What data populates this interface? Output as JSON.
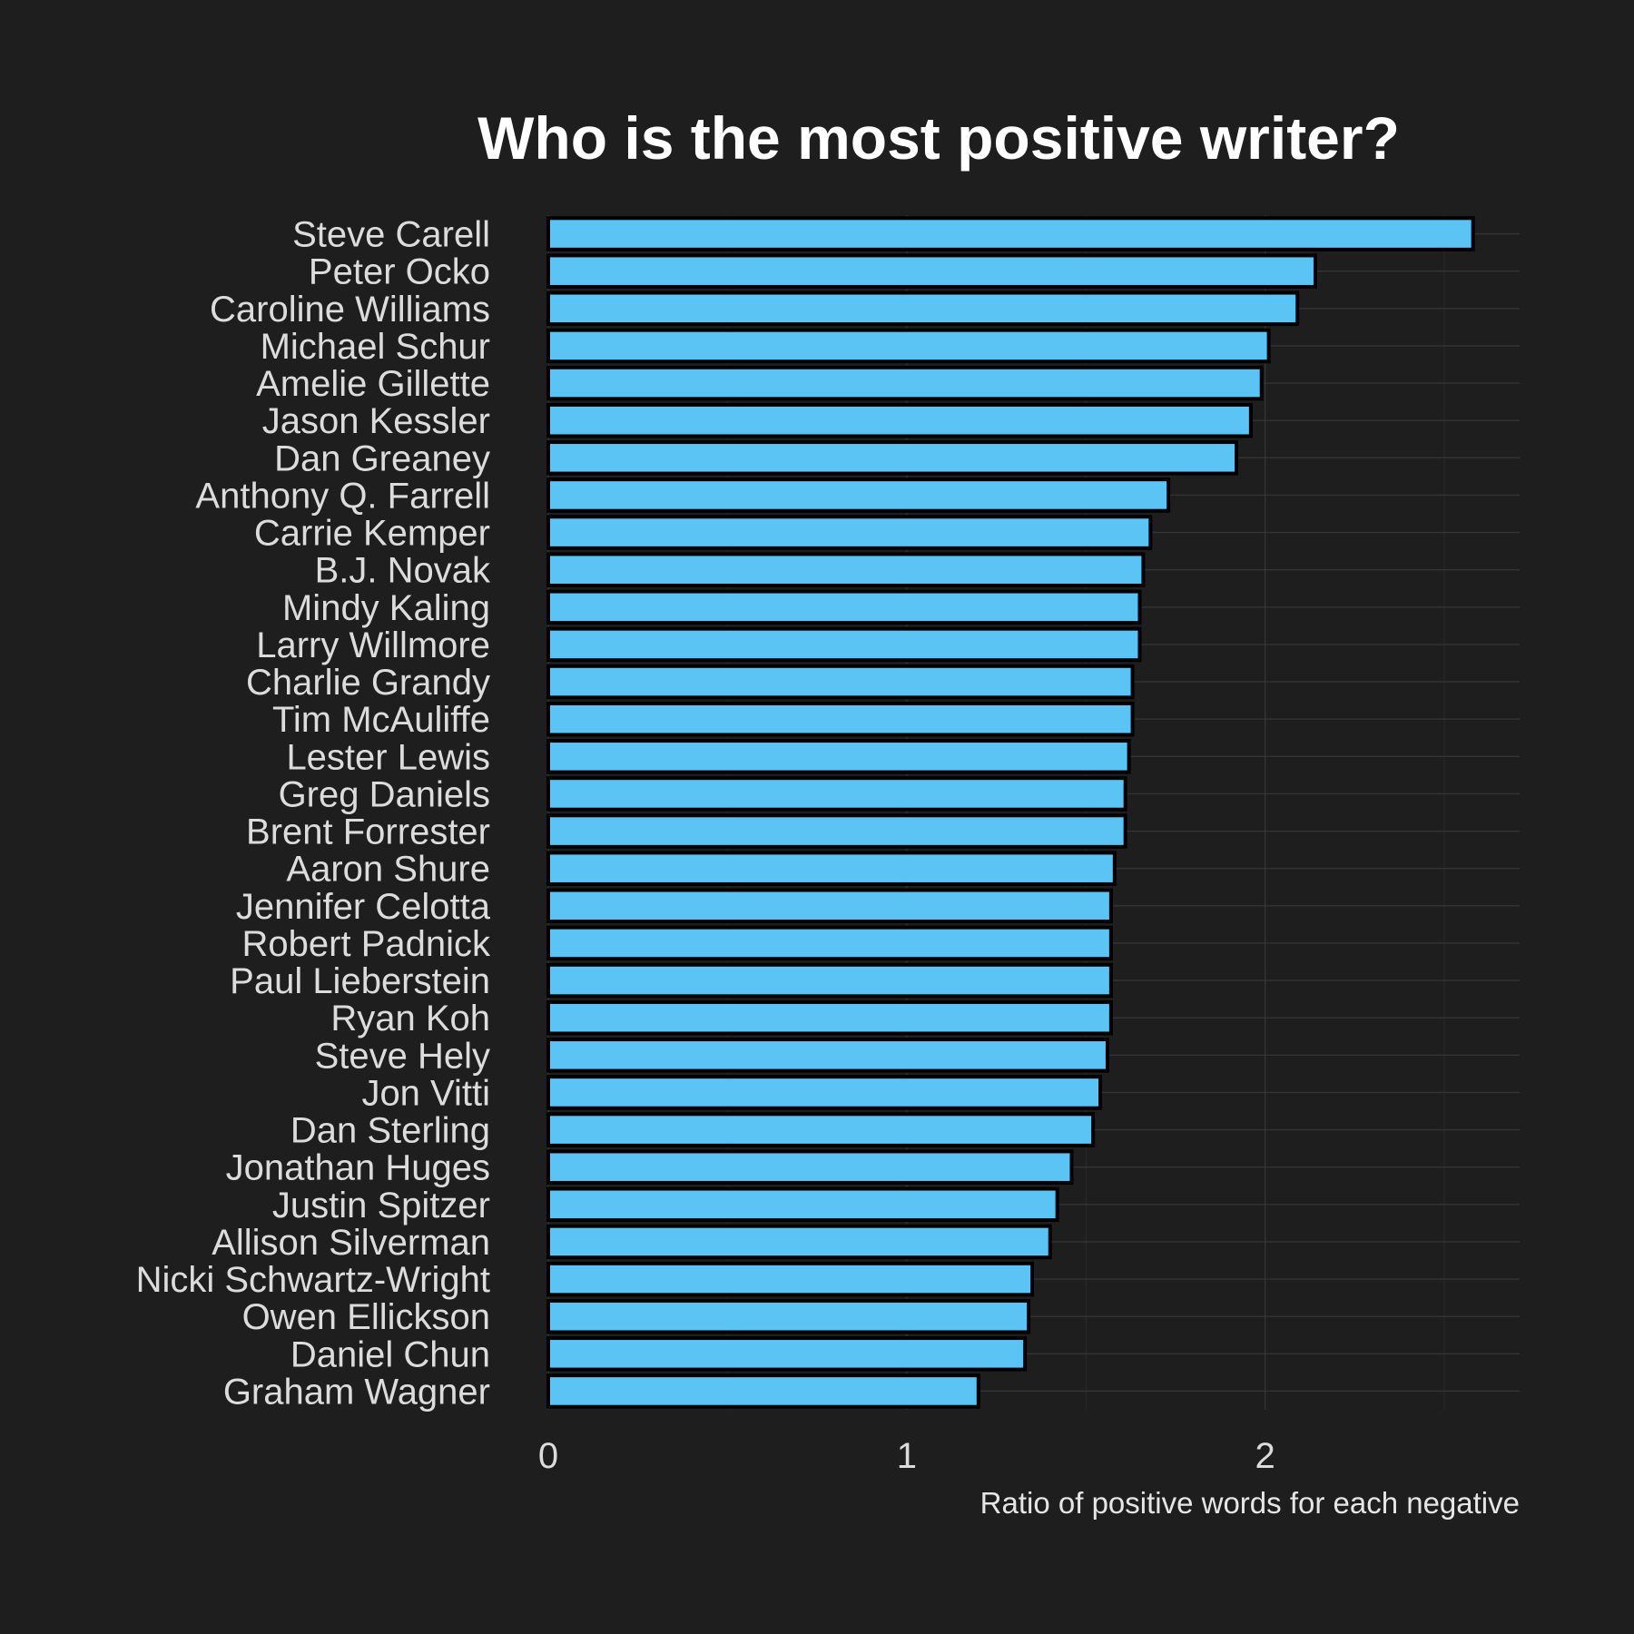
{
  "chart_data": {
    "type": "bar",
    "orientation": "horizontal",
    "title": "Who is the most positive writer?",
    "xlabel": "Ratio of positive words for each negative",
    "ylabel": "",
    "xlim": [
      0,
      2.71
    ],
    "xticks": [
      0,
      1,
      2
    ],
    "grid": true,
    "bar_color": "#5bc4f5",
    "categories": [
      "Steve Carell",
      "Peter Ocko",
      "Caroline Williams",
      "Michael Schur",
      "Amelie Gillette",
      "Jason Kessler",
      "Dan Greaney",
      "Anthony Q. Farrell",
      "Carrie Kemper",
      "B.J. Novak",
      "Mindy Kaling",
      "Larry Willmore",
      "Charlie Grandy",
      "Tim McAuliffe",
      "Lester Lewis",
      "Greg Daniels",
      "Brent Forrester",
      "Aaron Shure",
      "Jennifer Celotta",
      "Robert Padnick",
      "Paul Lieberstein",
      "Ryan Koh",
      "Steve Hely",
      "Jon Vitti",
      "Dan Sterling",
      "Jonathan Huges",
      "Justin Spitzer",
      "Allison Silverman",
      "Nicki Schwartz-Wright",
      "Owen Ellickson",
      "Daniel Chun",
      "Graham Wagner"
    ],
    "values": [
      2.58,
      2.14,
      2.09,
      2.01,
      1.99,
      1.96,
      1.92,
      1.73,
      1.68,
      1.66,
      1.65,
      1.65,
      1.63,
      1.63,
      1.62,
      1.61,
      1.61,
      1.58,
      1.57,
      1.57,
      1.57,
      1.57,
      1.56,
      1.54,
      1.52,
      1.46,
      1.42,
      1.4,
      1.35,
      1.34,
      1.33,
      1.2
    ]
  }
}
